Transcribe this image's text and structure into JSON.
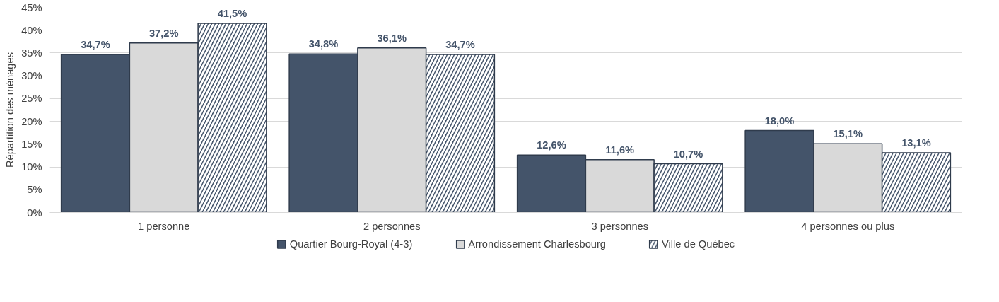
{
  "chart_data": {
    "type": "bar",
    "ylabel": "Répartition des ménages",
    "categories": [
      "1 personne",
      "2 personnes",
      "3 personnes",
      "4 personnes ou plus"
    ],
    "series": [
      {
        "name": "Quartier Bourg-Royal (4-3)",
        "color": "#44546a",
        "values": [
          34.7,
          34.8,
          12.6,
          18.0
        ],
        "value_labels": [
          "34,7%",
          "34,8%",
          "12,6%",
          "18,0%"
        ]
      },
      {
        "name": "Arrondissement Charlesbourg",
        "color": "#d9d9d9",
        "values": [
          37.2,
          36.1,
          11.6,
          15.1
        ],
        "value_labels": [
          "37,2%",
          "36,1%",
          "11,6%",
          "15,1%"
        ]
      },
      {
        "name": "Ville de Québec",
        "color": "#44546a",
        "values": [
          41.5,
          34.7,
          10.7,
          13.1
        ],
        "value_labels": [
          "41,5%",
          "34,7%",
          "10,7%",
          "13,1%"
        ]
      }
    ],
    "ylim": [
      0,
      45
    ],
    "yticks": [
      {
        "value": 0,
        "label": "0%"
      },
      {
        "value": 5,
        "label": "5%"
      },
      {
        "value": 10,
        "label": "10%"
      },
      {
        "value": 15,
        "label": "15%"
      },
      {
        "value": 20,
        "label": "20%"
      },
      {
        "value": 25,
        "label": "25%"
      },
      {
        "value": 30,
        "label": "30%"
      },
      {
        "value": 35,
        "label": "35%"
      },
      {
        "value": 40,
        "label": "40%"
      },
      {
        "value": 45,
        "label": "45%"
      }
    ],
    "grid": "y",
    "legend": "bottom"
  }
}
